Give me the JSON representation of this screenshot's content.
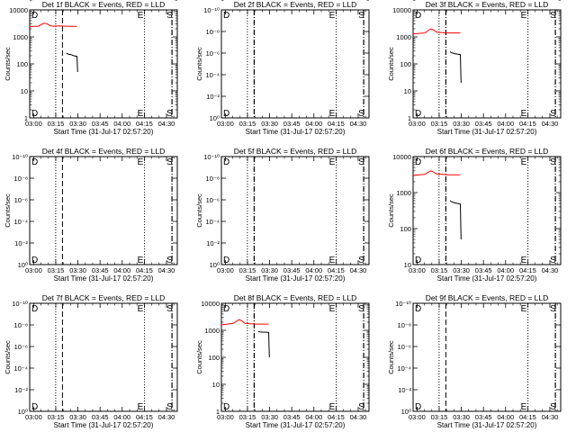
{
  "chart_data": [
    {
      "type": "line",
      "title": "Det 1f BLACK = Events, RED = LLD",
      "xlabel": "Start Time (31-Jul-17 02:57:20)",
      "ylabel": "Counts/sec",
      "x_ticks": [
        "03:00",
        "03:15",
        "03:30",
        "03:45",
        "04:00",
        "04:15",
        "04:30"
      ],
      "y_scale": "log",
      "y_ticks": [
        "1",
        "10",
        "100",
        "1000",
        "10000"
      ],
      "ylim": [
        1,
        10000
      ],
      "xlim_minutes": [
        0,
        100
      ],
      "markers": [
        {
          "t": 17.6,
          "style": "dotted",
          "label": "D"
        },
        {
          "t": 22.2,
          "style": "dashed",
          "label": ""
        },
        {
          "t": 77.8,
          "style": "dotted",
          "label": "E"
        },
        {
          "t": 96.4,
          "style": "dashdot",
          "label": "S"
        }
      ],
      "series": [
        {
          "color": "#ff0000",
          "points": [
            [
              0,
              2400
            ],
            [
              3,
              2450
            ],
            [
              6,
              2500
            ],
            [
              8,
              2900
            ],
            [
              10,
              3200
            ],
            [
              12,
              3000
            ],
            [
              14,
              2600
            ],
            [
              16,
              2500
            ],
            [
              20,
              2550
            ],
            [
              24,
              2500
            ],
            [
              28,
              2450
            ],
            [
              32,
              2450
            ]
          ]
        },
        {
          "color": "#000000",
          "points": [
            [
              25,
              250
            ],
            [
              26,
              230
            ],
            [
              28,
              220
            ],
            [
              30,
              200
            ],
            [
              32,
              190
            ],
            [
              32.5,
              50
            ]
          ]
        }
      ]
    },
    {
      "type": "line",
      "title": "Det 2f BLACK = Events, RED = LLD",
      "xlabel": "Start Time (31-Jul-17 02:57:20)",
      "ylabel": "Counts/sec",
      "x_ticks": [
        "03:00",
        "03:15",
        "03:30",
        "03:45",
        "04:00",
        "04:15",
        "04:30"
      ],
      "y_scale": "log",
      "y_ticks": [
        "10⁰",
        "10⁻²",
        "10⁻⁴",
        "10⁻⁶",
        "10⁻⁸",
        "10⁻¹⁰"
      ],
      "ylim": [
        0,
        10
      ],
      "xlim_minutes": [
        0,
        100
      ],
      "markers": [
        {
          "t": 17.6,
          "style": "dotted",
          "label": "D"
        },
        {
          "t": 22.2,
          "style": "dashdot",
          "label": ""
        },
        {
          "t": 77.8,
          "style": "dotted",
          "label": "E"
        },
        {
          "t": 96.4,
          "style": "dashdot",
          "label": "S"
        }
      ],
      "series": []
    },
    {
      "type": "line",
      "title": "Det 3f BLACK = Events, RED = LLD",
      "xlabel": "Start Time (31-Jul-17 02:57:20)",
      "ylabel": "Counts/sec",
      "x_ticks": [
        "03:00",
        "03:15",
        "03:30",
        "03:45",
        "04:00",
        "04:15",
        "04:30"
      ],
      "y_scale": "log",
      "y_ticks": [
        "1",
        "10",
        "100",
        "1000",
        "10000"
      ],
      "ylim": [
        1,
        10000
      ],
      "xlim_minutes": [
        0,
        100
      ],
      "markers": [
        {
          "t": 17.6,
          "style": "dotted",
          "label": "D"
        },
        {
          "t": 22.2,
          "style": "dashdot",
          "label": ""
        },
        {
          "t": 77.8,
          "style": "dotted",
          "label": "E"
        },
        {
          "t": 96.4,
          "style": "dashdot",
          "label": "S"
        }
      ],
      "series": [
        {
          "color": "#ff0000",
          "points": [
            [
              0,
              1300
            ],
            [
              4,
              1350
            ],
            [
              8,
              1400
            ],
            [
              10,
              1700
            ],
            [
              12,
              2000
            ],
            [
              14,
              1800
            ],
            [
              16,
              1500
            ],
            [
              20,
              1450
            ],
            [
              24,
              1400
            ],
            [
              28,
              1400
            ],
            [
              32,
              1400
            ]
          ]
        },
        {
          "color": "#000000",
          "points": [
            [
              25,
              280
            ],
            [
              26,
              260
            ],
            [
              28,
              240
            ],
            [
              30,
              230
            ],
            [
              32,
              220
            ],
            [
              32.5,
              20
            ]
          ]
        }
      ]
    },
    {
      "type": "line",
      "title": "Det 4f BLACK = Events, RED = LLD",
      "xlabel": "Start Time (31-Jul-17 02:57:20)",
      "ylabel": "Counts/sec",
      "x_ticks": [
        "03:00",
        "03:15",
        "03:30",
        "03:45",
        "04:00",
        "04:15",
        "04:30"
      ],
      "y_scale": "log",
      "y_ticks": [
        "10⁰",
        "10⁻²",
        "10⁻⁴",
        "10⁻⁶",
        "10⁻⁸",
        "10⁻¹⁰"
      ],
      "ylim": [
        0,
        10
      ],
      "xlim_minutes": [
        0,
        100
      ],
      "markers": [
        {
          "t": 17.6,
          "style": "dotted",
          "label": "D"
        },
        {
          "t": 22.2,
          "style": "dashed",
          "label": ""
        },
        {
          "t": 77.8,
          "style": "dotted",
          "label": "E"
        },
        {
          "t": 96.4,
          "style": "dashdot",
          "label": "S"
        }
      ],
      "series": []
    },
    {
      "type": "line",
      "title": "Det 5f BLACK = Events, RED = LLD",
      "xlabel": "Start Time (31-Jul-17 02:57:20)",
      "ylabel": "Counts/sec",
      "x_ticks": [
        "03:00",
        "03:15",
        "03:30",
        "03:45",
        "04:00",
        "04:15",
        "04:30"
      ],
      "y_scale": "log",
      "y_ticks": [
        "10⁰",
        "10⁻²",
        "10⁻⁴",
        "10⁻⁶",
        "10⁻⁸",
        "10⁻¹⁰"
      ],
      "ylim": [
        0,
        10
      ],
      "xlim_minutes": [
        0,
        100
      ],
      "markers": [
        {
          "t": 17.6,
          "style": "dotted",
          "label": "D"
        },
        {
          "t": 22.2,
          "style": "dashdot",
          "label": ""
        },
        {
          "t": 77.8,
          "style": "dotted",
          "label": "E"
        },
        {
          "t": 96.4,
          "style": "dashdot",
          "label": "S"
        }
      ],
      "series": []
    },
    {
      "type": "line",
      "title": "Det 6f BLACK = Events, RED = LLD",
      "xlabel": "Start Time (31-Jul-17 02:57:20)",
      "ylabel": "Counts/sec",
      "x_ticks": [
        "03:00",
        "03:15",
        "03:30",
        "03:45",
        "04:00",
        "04:15",
        "04:30"
      ],
      "y_scale": "log",
      "y_ticks": [
        "10",
        "100",
        "1000",
        "10000"
      ],
      "ylim": [
        10,
        10000
      ],
      "xlim_minutes": [
        0,
        100
      ],
      "markers": [
        {
          "t": 17.6,
          "style": "dotted",
          "label": "D"
        },
        {
          "t": 22.2,
          "style": "dashdot",
          "label": ""
        },
        {
          "t": 77.8,
          "style": "dotted",
          "label": "E"
        },
        {
          "t": 96.4,
          "style": "dashdot",
          "label": "S"
        }
      ],
      "series": [
        {
          "color": "#ff0000",
          "points": [
            [
              0,
              3000
            ],
            [
              4,
              3100
            ],
            [
              8,
              3200
            ],
            [
              10,
              3600
            ],
            [
              12,
              4000
            ],
            [
              14,
              3700
            ],
            [
              16,
              3300
            ],
            [
              20,
              3200
            ],
            [
              24,
              3100
            ],
            [
              28,
              3100
            ],
            [
              32,
              3100
            ]
          ]
        },
        {
          "color": "#000000",
          "points": [
            [
              25,
              600
            ],
            [
              26,
              560
            ],
            [
              28,
              520
            ],
            [
              30,
              500
            ],
            [
              32,
              480
            ],
            [
              32.5,
              50
            ]
          ]
        }
      ]
    },
    {
      "type": "line",
      "title": "Det 7f BLACK = Events, RED = LLD",
      "xlabel": "Start Time (31-Jul-17 02:57:20)",
      "ylabel": "Counts/sec",
      "x_ticks": [
        "03:00",
        "03:15",
        "03:30",
        "03:45",
        "04:00",
        "04:15",
        "04:30"
      ],
      "y_scale": "log",
      "y_ticks": [
        "10⁰",
        "10⁻²",
        "10⁻⁴",
        "10⁻⁶",
        "10⁻⁸",
        "10⁻¹⁰"
      ],
      "ylim": [
        0,
        10
      ],
      "xlim_minutes": [
        0,
        100
      ],
      "markers": [
        {
          "t": 17.6,
          "style": "dotted",
          "label": "D"
        },
        {
          "t": 22.2,
          "style": "dashed",
          "label": ""
        },
        {
          "t": 77.8,
          "style": "dotted",
          "label": "E"
        },
        {
          "t": 96.4,
          "style": "dashdot",
          "label": "S"
        }
      ],
      "series": []
    },
    {
      "type": "line",
      "title": "Det 8f BLACK = Events, RED = LLD",
      "xlabel": "Start Time (31-Jul-17 02:57:20)",
      "ylabel": "Counts/sec",
      "x_ticks": [
        "03:00",
        "03:15",
        "03:30",
        "03:45",
        "04:00",
        "04:15",
        "04:30"
      ],
      "y_scale": "log",
      "y_ticks": [
        "1",
        "10",
        "100",
        "1000",
        "10000"
      ],
      "ylim": [
        1,
        10000
      ],
      "xlim_minutes": [
        0,
        100
      ],
      "markers": [
        {
          "t": 17.6,
          "style": "dotted",
          "label": "D"
        },
        {
          "t": 22.2,
          "style": "dashdot",
          "label": ""
        },
        {
          "t": 77.8,
          "style": "dotted",
          "label": "E"
        },
        {
          "t": 96.4,
          "style": "dashdot",
          "label": "S"
        }
      ],
      "series": [
        {
          "color": "#ff0000",
          "points": [
            [
              0,
              1600
            ],
            [
              4,
              1700
            ],
            [
              8,
              1800
            ],
            [
              10,
              2100
            ],
            [
              12,
              2500
            ],
            [
              14,
              2200
            ],
            [
              16,
              1800
            ],
            [
              20,
              1750
            ],
            [
              24,
              1700
            ],
            [
              28,
              1700
            ],
            [
              32,
              1700
            ]
          ]
        },
        {
          "color": "#000000",
          "points": [
            [
              25,
              900
            ],
            [
              26,
              880
            ],
            [
              28,
              860
            ],
            [
              30,
              850
            ],
            [
              32,
              840
            ],
            [
              32.5,
              100
            ]
          ]
        }
      ]
    },
    {
      "type": "line",
      "title": "Det 9f BLACK = Events, RED = LLD",
      "xlabel": "Start Time (31-Jul-17 02:57:20)",
      "ylabel": "Counts/sec",
      "x_ticks": [
        "03:00",
        "03:15",
        "03:30",
        "03:45",
        "04:00",
        "04:15",
        "04:30"
      ],
      "y_scale": "log",
      "y_ticks": [
        "10⁰",
        "10⁻²",
        "10⁻⁴",
        "10⁻⁶",
        "10⁻⁸",
        "10⁻¹⁰"
      ],
      "ylim": [
        0,
        10
      ],
      "xlim_minutes": [
        0,
        100
      ],
      "markers": [
        {
          "t": 17.6,
          "style": "dotted",
          "label": "D"
        },
        {
          "t": 22.2,
          "style": "dashed",
          "label": ""
        },
        {
          "t": 77.8,
          "style": "dotted",
          "label": "E"
        },
        {
          "t": 96.4,
          "style": "dashdot",
          "label": "S"
        }
      ],
      "series": []
    }
  ]
}
